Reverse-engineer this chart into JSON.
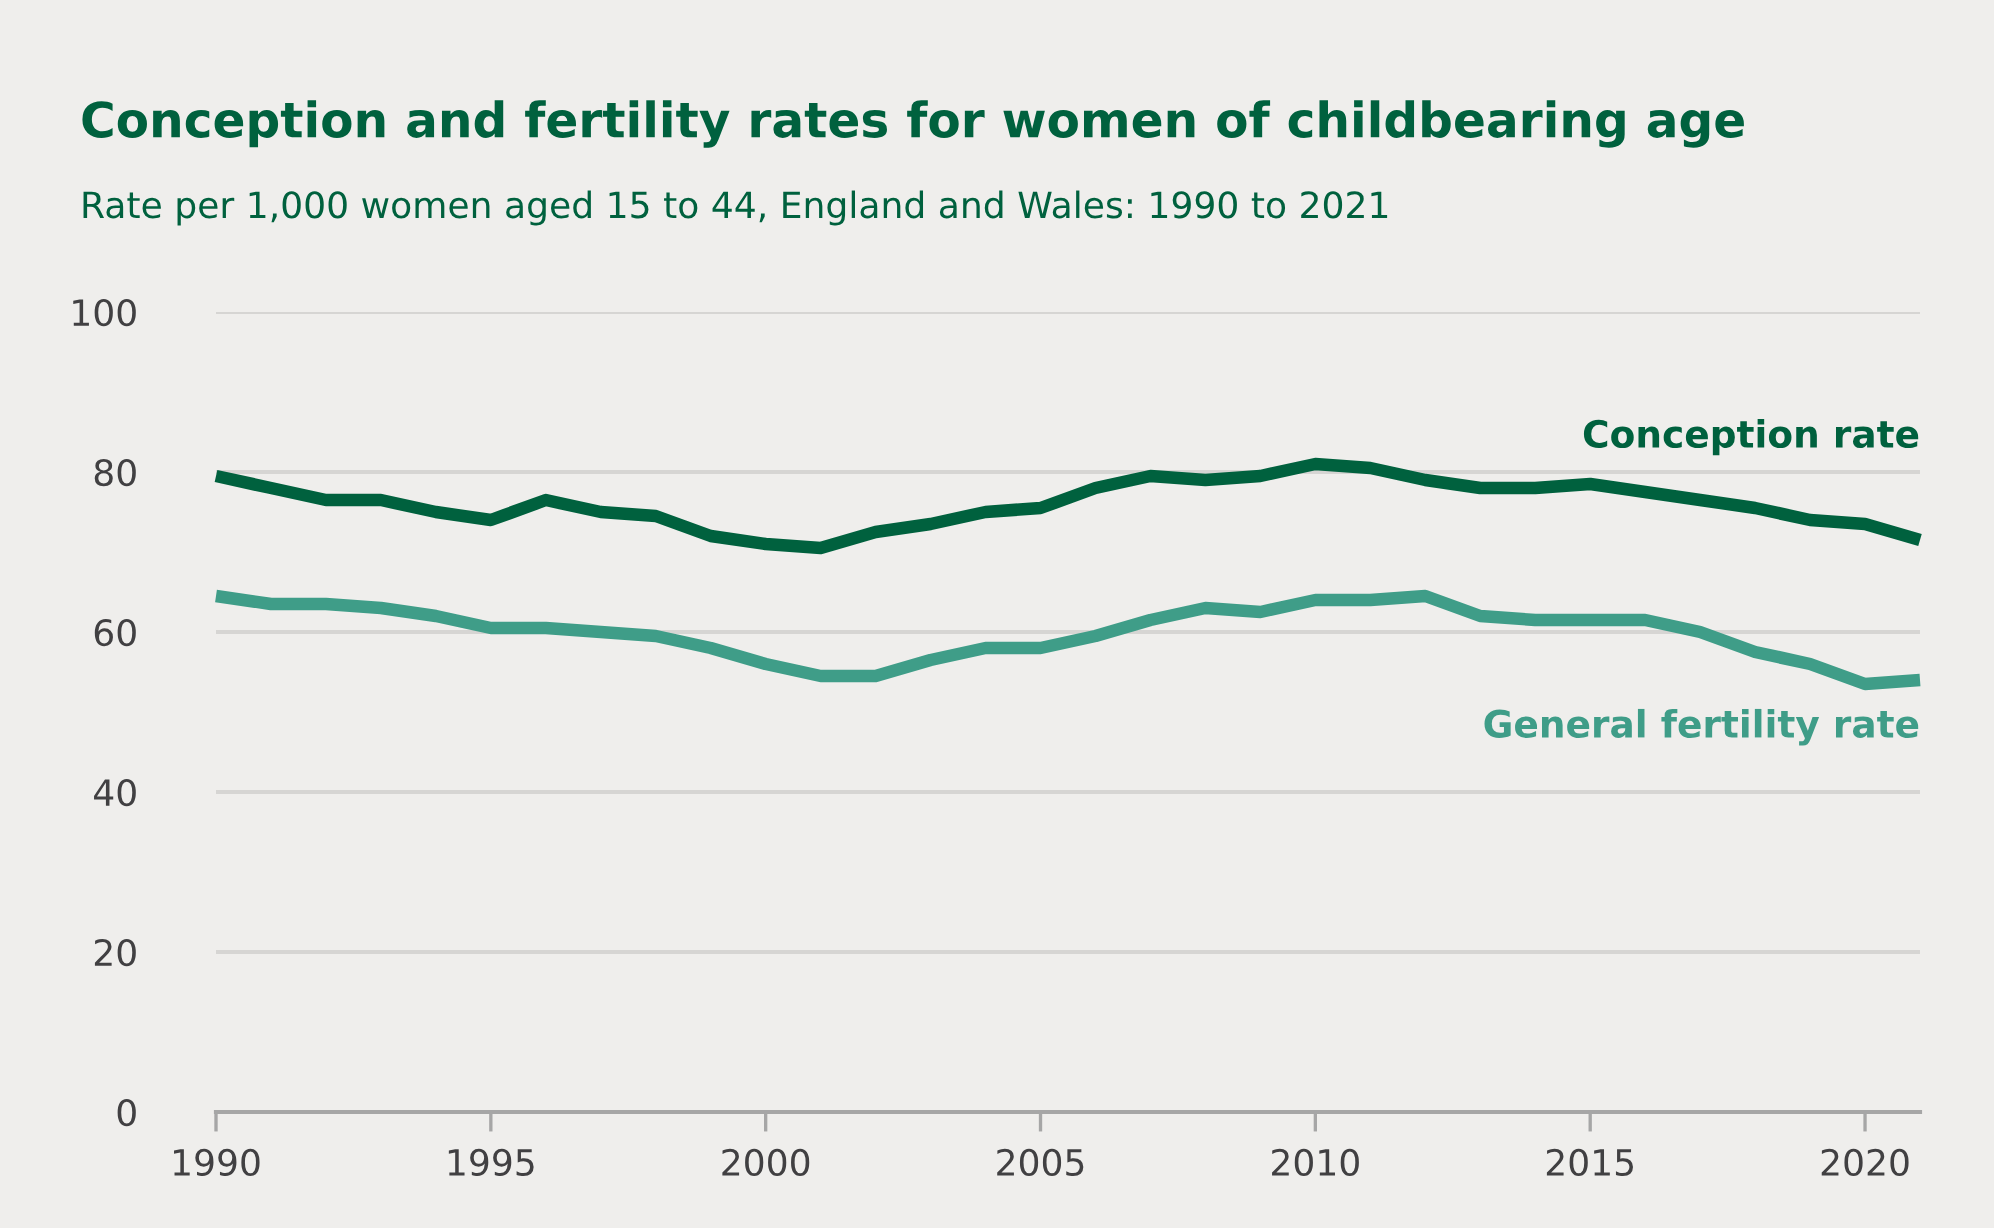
{
  "chart_data": {
    "type": "line",
    "title": "Conception and fertility rates for women of childbearing age",
    "subtitle": "Rate per 1,000 women aged 15 to 44, England and Wales: 1990 to 2021",
    "x": [
      1990,
      1991,
      1992,
      1993,
      1994,
      1995,
      1996,
      1997,
      1998,
      1999,
      2000,
      2001,
      2002,
      2003,
      2004,
      2005,
      2006,
      2007,
      2008,
      2009,
      2010,
      2011,
      2012,
      2013,
      2014,
      2015,
      2016,
      2017,
      2018,
      2019,
      2020,
      2021
    ],
    "series": [
      {
        "name": "Conception rate",
        "color": "#00613e",
        "values": [
          79.5,
          78,
          76.5,
          76.5,
          75,
          74,
          76.5,
          75,
          74.5,
          72,
          71,
          70.5,
          72.5,
          73.5,
          75,
          75.5,
          78,
          79.5,
          79,
          79.5,
          81,
          80.5,
          79,
          78,
          78,
          78.5,
          77.5,
          76.5,
          75.5,
          74,
          73.5,
          71.5
        ]
      },
      {
        "name": "General fertility rate",
        "color": "#3f9d88",
        "values": [
          64.5,
          63.5,
          63.5,
          63,
          62,
          60.5,
          60.5,
          60,
          59.5,
          58,
          56,
          54.5,
          54.5,
          56.5,
          58,
          58,
          59.5,
          61.5,
          63,
          62.5,
          64,
          64,
          64.5,
          62,
          61.5,
          61.5,
          61.5,
          60,
          57.5,
          56,
          53.5,
          54
        ]
      }
    ],
    "xlim": [
      1990,
      2021
    ],
    "xticks": [
      1990,
      1995,
      2000,
      2005,
      2010,
      2015,
      2020
    ],
    "ylim": [
      0,
      100
    ],
    "yticks": [
      0,
      20,
      40,
      60,
      80,
      100
    ],
    "grid": "y",
    "legend": false,
    "line_style": "solid",
    "marker": "none"
  }
}
